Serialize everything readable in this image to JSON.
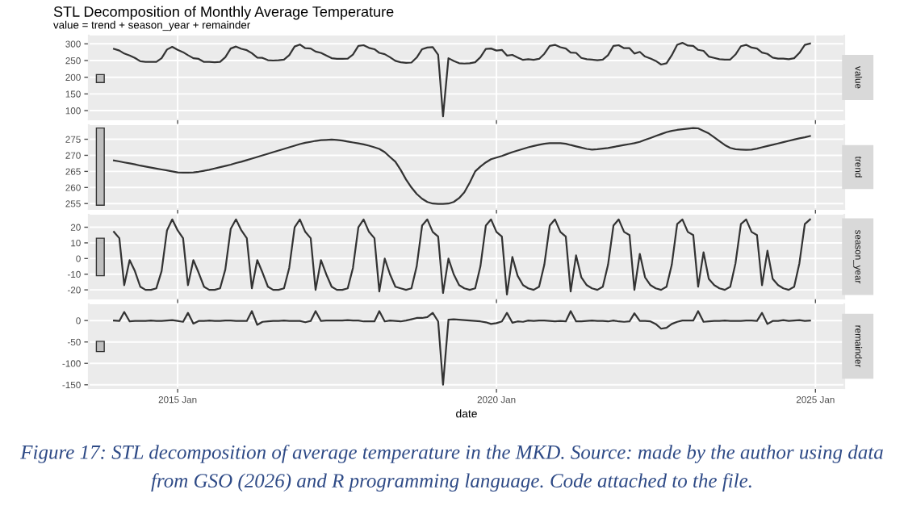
{
  "chart_data": [
    {
      "type": "line",
      "title": "STL Decomposition of Monthly Average Temperature",
      "subtitle": "value = trend + season_year + remainder",
      "ylabel": "value",
      "grid": true,
      "tick_labels": "y",
      "xlim": [
        "2013-08-10",
        "2025-06-15"
      ],
      "xticks": [
        {
          "value": "2015-01-01",
          "label": null
        },
        {
          "value": "2020-01-01",
          "label": null
        },
        {
          "value": "2025-01-01",
          "label": null
        }
      ],
      "ylim": [
        73.5,
        325
      ],
      "yticks": [
        100,
        150,
        200,
        250,
        300
      ],
      "x": [
        "2014-01",
        "2014-02",
        "2014-03",
        "2014-04",
        "2014-05",
        "2014-06",
        "2014-07",
        "2014-08",
        "2014-09",
        "2014-10",
        "2014-11",
        "2014-12",
        "2015-01",
        "2015-02",
        "2015-03",
        "2015-04",
        "2015-05",
        "2015-06",
        "2015-07",
        "2015-08",
        "2015-09",
        "2015-10",
        "2015-11",
        "2015-12",
        "2016-01",
        "2016-02",
        "2016-03",
        "2016-04",
        "2016-05",
        "2016-06",
        "2016-07",
        "2016-08",
        "2016-09",
        "2016-10",
        "2016-11",
        "2016-12",
        "2017-01",
        "2017-02",
        "2017-03",
        "2017-04",
        "2017-05",
        "2017-06",
        "2017-07",
        "2017-08",
        "2017-09",
        "2017-10",
        "2017-11",
        "2017-12",
        "2018-01",
        "2018-02",
        "2018-03",
        "2018-04",
        "2018-05",
        "2018-06",
        "2018-07",
        "2018-08",
        "2018-09",
        "2018-10",
        "2018-11",
        "2018-12",
        "2019-01",
        "2019-02",
        "2019-03",
        "2019-04",
        "2019-05",
        "2019-06",
        "2019-07",
        "2019-08",
        "2019-09",
        "2019-10",
        "2019-11",
        "2019-12",
        "2020-01",
        "2020-02",
        "2020-03",
        "2020-04",
        "2020-05",
        "2020-06",
        "2020-07",
        "2020-08",
        "2020-09",
        "2020-10",
        "2020-11",
        "2020-12",
        "2021-01",
        "2021-02",
        "2021-03",
        "2021-04",
        "2021-05",
        "2021-06",
        "2021-07",
        "2021-08",
        "2021-09",
        "2021-10",
        "2021-11",
        "2021-12",
        "2022-01",
        "2022-02",
        "2022-03",
        "2022-04",
        "2022-05",
        "2022-06",
        "2022-07",
        "2022-08",
        "2022-09",
        "2022-10",
        "2022-11",
        "2022-12",
        "2023-01",
        "2023-02",
        "2023-03",
        "2023-04",
        "2023-05",
        "2023-06",
        "2023-07",
        "2023-08",
        "2023-09",
        "2023-10",
        "2023-11",
        "2023-12",
        "2024-01",
        "2024-02",
        "2024-03",
        "2024-04",
        "2024-05",
        "2024-06",
        "2024-07",
        "2024-08",
        "2024-09",
        "2024-10",
        "2024-11",
        "2024-12"
      ],
      "series": [
        {
          "color": "#333333",
          "values": [
            285,
            280,
            271,
            265,
            258,
            248,
            246,
            246,
            246,
            257,
            283,
            291,
            282,
            275,
            266,
            257,
            255,
            246,
            246,
            245,
            246,
            260,
            286,
            292,
            285,
            281,
            272,
            259,
            258,
            251,
            250,
            251,
            253,
            266,
            292,
            298,
            287,
            286,
            277,
            273,
            265,
            257,
            255,
            255,
            256,
            268,
            294,
            296,
            288,
            284,
            273,
            269,
            260,
            249,
            245,
            243,
            244,
            259,
            284,
            289,
            290,
            267,
            83,
            257,
            249,
            242,
            241,
            242,
            245,
            260,
            285,
            286,
            280,
            282,
            265,
            267,
            259,
            252,
            254,
            252,
            255,
            270,
            294,
            297,
            290,
            286,
            274,
            273,
            258,
            254,
            253,
            251,
            253,
            266,
            294,
            296,
            287,
            287,
            271,
            276,
            262,
            256,
            249,
            238,
            242,
            266,
            297,
            303,
            295,
            294,
            282,
            279,
            262,
            258,
            254,
            253,
            253,
            268,
            293,
            297,
            289,
            286,
            274,
            270,
            259,
            256,
            256,
            254,
            257,
            273,
            297,
            301
          ]
        },
        {
          "type": "bar",
          "x": [
            "2013-10-15"
          ],
          "base": [
            184
          ],
          "values": [
            24
          ],
          "color": "#bfbfbf"
        }
      ]
    },
    {
      "type": "line",
      "ylabel": "trend",
      "grid": true,
      "tick_labels": "y",
      "xlim": [
        "2013-08-10",
        "2025-06-15"
      ],
      "xticks": [
        {
          "value": "2015-01-01",
          "label": null
        },
        {
          "value": "2020-01-01",
          "label": null
        },
        {
          "value": "2025-01-01",
          "label": null
        }
      ],
      "ylim": [
        253.3,
        279.4
      ],
      "yticks": [
        255,
        260,
        265,
        270,
        275
      ],
      "x": [
        "2014-01",
        "2014-02",
        "2014-03",
        "2014-04",
        "2014-05",
        "2014-06",
        "2014-07",
        "2014-08",
        "2014-09",
        "2014-10",
        "2014-11",
        "2014-12",
        "2015-01",
        "2015-02",
        "2015-03",
        "2015-04",
        "2015-05",
        "2015-06",
        "2015-07",
        "2015-08",
        "2015-09",
        "2015-10",
        "2015-11",
        "2015-12",
        "2016-01",
        "2016-02",
        "2016-03",
        "2016-04",
        "2016-05",
        "2016-06",
        "2016-07",
        "2016-08",
        "2016-09",
        "2016-10",
        "2016-11",
        "2016-12",
        "2017-01",
        "2017-02",
        "2017-03",
        "2017-04",
        "2017-05",
        "2017-06",
        "2017-07",
        "2017-08",
        "2017-09",
        "2017-10",
        "2017-11",
        "2017-12",
        "2018-01",
        "2018-02",
        "2018-03",
        "2018-04",
        "2018-05",
        "2018-06",
        "2018-07",
        "2018-08",
        "2018-09",
        "2018-10",
        "2018-11",
        "2018-12",
        "2019-01",
        "2019-02",
        "2019-03",
        "2019-04",
        "2019-05",
        "2019-06",
        "2019-07",
        "2019-08",
        "2019-09",
        "2019-10",
        "2019-11",
        "2019-12",
        "2020-01",
        "2020-02",
        "2020-03",
        "2020-04",
        "2020-05",
        "2020-06",
        "2020-07",
        "2020-08",
        "2020-09",
        "2020-10",
        "2020-11",
        "2020-12",
        "2021-01",
        "2021-02",
        "2021-03",
        "2021-04",
        "2021-05",
        "2021-06",
        "2021-07",
        "2021-08",
        "2021-09",
        "2021-10",
        "2021-11",
        "2021-12",
        "2022-01",
        "2022-02",
        "2022-03",
        "2022-04",
        "2022-05",
        "2022-06",
        "2022-07",
        "2022-08",
        "2022-09",
        "2022-10",
        "2022-11",
        "2022-12",
        "2023-01",
        "2023-02",
        "2023-03",
        "2023-04",
        "2023-05",
        "2023-06",
        "2023-07",
        "2023-08",
        "2023-09",
        "2023-10",
        "2023-11",
        "2023-12",
        "2024-01",
        "2024-02",
        "2024-03",
        "2024-04",
        "2024-05",
        "2024-06",
        "2024-07",
        "2024-08",
        "2024-09",
        "2024-10",
        "2024-11",
        "2024-12"
      ],
      "series": [
        {
          "color": "#333333",
          "values": [
            268.4,
            268.1,
            267.8,
            267.5,
            267.2,
            266.8,
            266.5,
            266.2,
            265.9,
            265.6,
            265.3,
            265.0,
            264.7,
            264.6,
            264.6,
            264.7,
            264.9,
            265.2,
            265.5,
            265.9,
            266.3,
            266.7,
            267.1,
            267.6,
            268.0,
            268.5,
            269.0,
            269.5,
            270.0,
            270.5,
            271.0,
            271.5,
            272.0,
            272.5,
            273.0,
            273.5,
            273.9,
            274.2,
            274.5,
            274.7,
            274.8,
            274.9,
            274.8,
            274.6,
            274.3,
            274.0,
            273.7,
            273.4,
            273.0,
            272.5,
            272.0,
            271.0,
            269.5,
            268.0,
            265.5,
            262.5,
            260.0,
            258.0,
            256.5,
            255.5,
            255.0,
            254.9,
            254.9,
            255.0,
            255.5,
            256.7,
            258.5,
            261.5,
            265.0,
            266.5,
            267.8,
            268.8,
            269.3,
            269.8,
            270.4,
            271.0,
            271.5,
            272.0,
            272.5,
            272.9,
            273.3,
            273.6,
            273.8,
            273.8,
            273.8,
            273.6,
            273.2,
            272.8,
            272.4,
            272.0,
            271.8,
            271.9,
            272.1,
            272.3,
            272.6,
            272.9,
            273.2,
            273.5,
            273.8,
            274.2,
            274.8,
            275.4,
            276.0,
            276.6,
            277.2,
            277.6,
            277.9,
            278.1,
            278.3,
            278.5,
            278.4,
            277.6,
            276.8,
            275.6,
            274.4,
            273.2,
            272.3,
            271.9,
            271.8,
            271.7,
            271.8,
            272.1,
            272.5,
            272.9,
            273.3,
            273.7,
            274.1,
            274.5,
            274.9,
            275.3,
            275.6,
            276.0
          ]
        },
        {
          "type": "bar",
          "x": [
            "2013-10-15"
          ],
          "base": [
            254.5
          ],
          "values": [
            24
          ],
          "color": "#bfbfbf"
        }
      ]
    },
    {
      "type": "line",
      "ylabel": "season_year",
      "grid": true,
      "tick_labels": "y",
      "xlim": [
        "2013-08-10",
        "2025-06-15"
      ],
      "xticks": [
        {
          "value": "2015-01-01",
          "label": null
        },
        {
          "value": "2020-01-01",
          "label": null
        },
        {
          "value": "2025-01-01",
          "label": null
        }
      ],
      "ylim": [
        -25.6,
        28
      ],
      "yticks": [
        -20,
        -10,
        0,
        10,
        20
      ],
      "x": [
        "2014-01",
        "2014-02",
        "2014-03",
        "2014-04",
        "2014-05",
        "2014-06",
        "2014-07",
        "2014-08",
        "2014-09",
        "2014-10",
        "2014-11",
        "2014-12",
        "2015-01",
        "2015-02",
        "2015-03",
        "2015-04",
        "2015-05",
        "2015-06",
        "2015-07",
        "2015-08",
        "2015-09",
        "2015-10",
        "2015-11",
        "2015-12",
        "2016-01",
        "2016-02",
        "2016-03",
        "2016-04",
        "2016-05",
        "2016-06",
        "2016-07",
        "2016-08",
        "2016-09",
        "2016-10",
        "2016-11",
        "2016-12",
        "2017-01",
        "2017-02",
        "2017-03",
        "2017-04",
        "2017-05",
        "2017-06",
        "2017-07",
        "2017-08",
        "2017-09",
        "2017-10",
        "2017-11",
        "2017-12",
        "2018-01",
        "2018-02",
        "2018-03",
        "2018-04",
        "2018-05",
        "2018-06",
        "2018-07",
        "2018-08",
        "2018-09",
        "2018-10",
        "2018-11",
        "2018-12",
        "2019-01",
        "2019-02",
        "2019-03",
        "2019-04",
        "2019-05",
        "2019-06",
        "2019-07",
        "2019-08",
        "2019-09",
        "2019-10",
        "2019-11",
        "2019-12",
        "2020-01",
        "2020-02",
        "2020-03",
        "2020-04",
        "2020-05",
        "2020-06",
        "2020-07",
        "2020-08",
        "2020-09",
        "2020-10",
        "2020-11",
        "2020-12",
        "2021-01",
        "2021-02",
        "2021-03",
        "2021-04",
        "2021-05",
        "2021-06",
        "2021-07",
        "2021-08",
        "2021-09",
        "2021-10",
        "2021-11",
        "2021-12",
        "2022-01",
        "2022-02",
        "2022-03",
        "2022-04",
        "2022-05",
        "2022-06",
        "2022-07",
        "2022-08",
        "2022-09",
        "2022-10",
        "2022-11",
        "2022-12",
        "2023-01",
        "2023-02",
        "2023-03",
        "2023-04",
        "2023-05",
        "2023-06",
        "2023-07",
        "2023-08",
        "2023-09",
        "2023-10",
        "2023-11",
        "2023-12",
        "2024-01",
        "2024-02",
        "2024-03",
        "2024-04",
        "2024-05",
        "2024-06",
        "2024-07",
        "2024-08",
        "2024-09",
        "2024-10",
        "2024-11",
        "2024-12"
      ],
      "series": [
        {
          "color": "#333333",
          "values": [
            17,
            13,
            -17,
            -1,
            -8,
            -18,
            -20,
            -20,
            -19,
            -8,
            18,
            25,
            18,
            13,
            -17,
            -1,
            -9,
            -18,
            -20,
            -20,
            -19,
            -7,
            19,
            25,
            18,
            13,
            -19,
            -1,
            -9,
            -18,
            -20,
            -20,
            -19,
            -6,
            20,
            25,
            17,
            13,
            -20,
            -1,
            -10,
            -18,
            -20,
            -20,
            -19,
            -6,
            20,
            25,
            17,
            13,
            -21,
            0,
            -10,
            -18,
            -19,
            -20,
            -19,
            -5,
            21,
            25,
            17,
            14,
            -22,
            0,
            -10,
            -17,
            -19,
            -20,
            -19,
            -5,
            21,
            25,
            17,
            14,
            -23,
            1,
            -11,
            -17,
            -19,
            -20,
            -18,
            -4,
            21,
            25,
            17,
            14,
            -21,
            2,
            -12,
            -17,
            -19,
            -20,
            -18,
            -4,
            21,
            25,
            17,
            15,
            -20,
            3,
            -12,
            -17,
            -19,
            -20,
            -18,
            -4,
            22,
            25,
            17,
            15,
            -18,
            4,
            -13,
            -17,
            -19,
            -20,
            -18,
            -3,
            22,
            25,
            17,
            15,
            -17,
            5,
            -13,
            -17,
            -19,
            -20,
            -18,
            -3,
            22,
            25
          ]
        },
        {
          "type": "bar",
          "x": [
            "2013-10-15"
          ],
          "base": [
            -11
          ],
          "values": [
            24
          ],
          "color": "#bfbfbf"
        }
      ]
    },
    {
      "type": "line",
      "ylabel": "remainder",
      "xlabel": "date",
      "grid": true,
      "annotations": [
        "Figure 17: STL decomposition of average temperature in the MKD. Source: made by the author using data from GSO (2026) and R programming language. Code attached to the file."
      ],
      "xlim": [
        "2013-08-10",
        "2025-06-15"
      ],
      "xticks": [
        {
          "value": "2015-01-01",
          "label": "2015 Jan"
        },
        {
          "value": "2020-01-01",
          "label": "2020 Jan"
        },
        {
          "value": "2025-01-01",
          "label": "2025 Jan"
        }
      ],
      "ylim": [
        -158,
        38
      ],
      "yticks": [
        -150,
        -100,
        -50,
        0
      ],
      "x": [
        "2014-01",
        "2014-02",
        "2014-03",
        "2014-04",
        "2014-05",
        "2014-06",
        "2014-07",
        "2014-08",
        "2014-09",
        "2014-10",
        "2014-11",
        "2014-12",
        "2015-01",
        "2015-02",
        "2015-03",
        "2015-04",
        "2015-05",
        "2015-06",
        "2015-07",
        "2015-08",
        "2015-09",
        "2015-10",
        "2015-11",
        "2015-12",
        "2016-01",
        "2016-02",
        "2016-03",
        "2016-04",
        "2016-05",
        "2016-06",
        "2016-07",
        "2016-08",
        "2016-09",
        "2016-10",
        "2016-11",
        "2016-12",
        "2017-01",
        "2017-02",
        "2017-03",
        "2017-04",
        "2017-05",
        "2017-06",
        "2017-07",
        "2017-08",
        "2017-09",
        "2017-10",
        "2017-11",
        "2017-12",
        "2018-01",
        "2018-02",
        "2018-03",
        "2018-04",
        "2018-05",
        "2018-06",
        "2018-07",
        "2018-08",
        "2018-09",
        "2018-10",
        "2018-11",
        "2018-12",
        "2019-01",
        "2019-02",
        "2019-03",
        "2019-04",
        "2019-05",
        "2019-06",
        "2019-07",
        "2019-08",
        "2019-09",
        "2019-10",
        "2019-11",
        "2019-12",
        "2020-01",
        "2020-02",
        "2020-03",
        "2020-04",
        "2020-05",
        "2020-06",
        "2020-07",
        "2020-08",
        "2020-09",
        "2020-10",
        "2020-11",
        "2020-12",
        "2021-01",
        "2021-02",
        "2021-03",
        "2021-04",
        "2021-05",
        "2021-06",
        "2021-07",
        "2021-08",
        "2021-09",
        "2021-10",
        "2021-11",
        "2021-12",
        "2022-01",
        "2022-02",
        "2022-03",
        "2022-04",
        "2022-05",
        "2022-06",
        "2022-07",
        "2022-08",
        "2022-09",
        "2022-10",
        "2022-11",
        "2022-12",
        "2023-01",
        "2023-02",
        "2023-03",
        "2023-04",
        "2023-05",
        "2023-06",
        "2023-07",
        "2023-08",
        "2023-09",
        "2023-10",
        "2023-11",
        "2023-12",
        "2024-01",
        "2024-02",
        "2024-03",
        "2024-04",
        "2024-05",
        "2024-06",
        "2024-07",
        "2024-08",
        "2024-09",
        "2024-10",
        "2024-11",
        "2024-12"
      ],
      "series": [
        {
          "color": "#333333",
          "values": [
            0,
            -1,
            20,
            -2,
            -1,
            -1,
            -1,
            0,
            -1,
            -1,
            0,
            1,
            -1,
            -3,
            18,
            -7,
            -1,
            -1,
            0,
            -1,
            -1,
            0,
            0,
            -1,
            -1,
            -1,
            22,
            -10,
            -3,
            -2,
            -1,
            -1,
            0,
            -1,
            -1,
            -1,
            -4,
            -1,
            22,
            -1,
            0,
            0,
            0,
            0,
            1,
            0,
            0,
            -2,
            -2,
            -2,
            22,
            -2,
            0,
            -1,
            -2,
            0,
            3,
            6,
            6,
            8,
            18,
            -2,
            -150,
            2,
            3,
            2,
            1,
            0,
            -1,
            -2,
            -4,
            -8,
            -6,
            -2,
            18,
            -5,
            -2,
            -3,
            0,
            -1,
            0,
            0,
            -1,
            -2,
            -1,
            -2,
            22,
            -2,
            -2,
            -1,
            0,
            -1,
            -1,
            -2,
            0,
            -2,
            -3,
            -2,
            17,
            -1,
            -1,
            -2,
            -8,
            -19,
            -17,
            -8,
            -3,
            0,
            0,
            0,
            22,
            -3,
            -2,
            -1,
            -1,
            0,
            -1,
            -1,
            -1,
            0,
            0,
            -1,
            18,
            -8,
            -1,
            -1,
            1,
            -1,
            0,
            1,
            -1,
            0
          ]
        },
        {
          "type": "bar",
          "x": [
            "2013-10-15"
          ],
          "base": [
            -72.5
          ],
          "values": [
            24
          ],
          "color": "#bfbfbf"
        }
      ]
    }
  ]
}
